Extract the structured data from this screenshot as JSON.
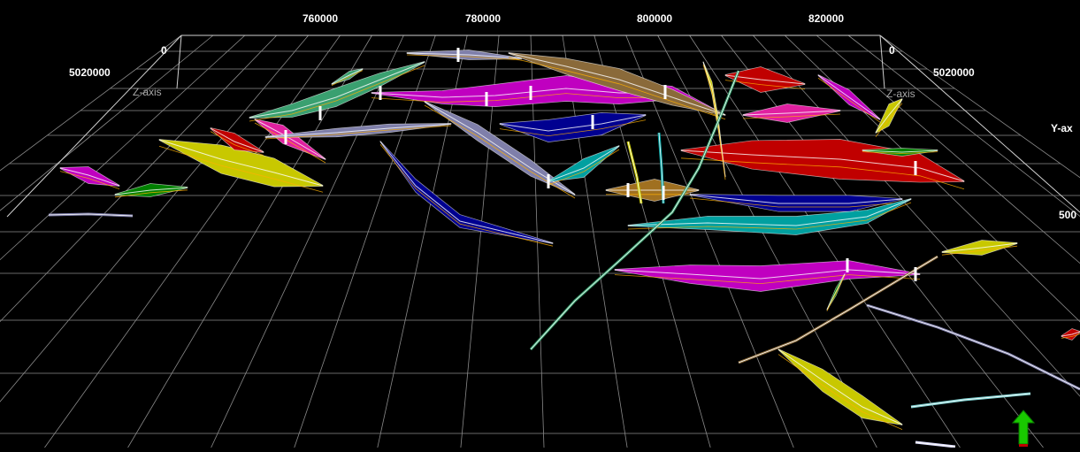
{
  "viewer": {
    "x_axis_ticks": [
      "760000",
      "780000",
      "800000",
      "820000"
    ],
    "y_axis_tick_left": "5020000",
    "y_axis_tick_right": "5020000",
    "y_axis_tick_right_partial": "500",
    "z_axis_label_left": "Z-axis",
    "z_axis_label_right": "Z-axis",
    "z_tick_left": "0",
    "z_tick_right": "0",
    "y_axis_label": "Y-ax",
    "background_color": "#000000",
    "grid_color": "#8a8a8a",
    "north_arrow_color": "#19c800",
    "north_arrow_icon": "north-arrow-icon"
  },
  "fault_palette": [
    "#c000c0",
    "#00a0a0",
    "#c8c800",
    "#c00000",
    "#000090",
    "#8a6a3a",
    "#008000",
    "#e020a0",
    "#0080c0",
    "#7f7faa",
    "#3aa070",
    "#a07020"
  ]
}
